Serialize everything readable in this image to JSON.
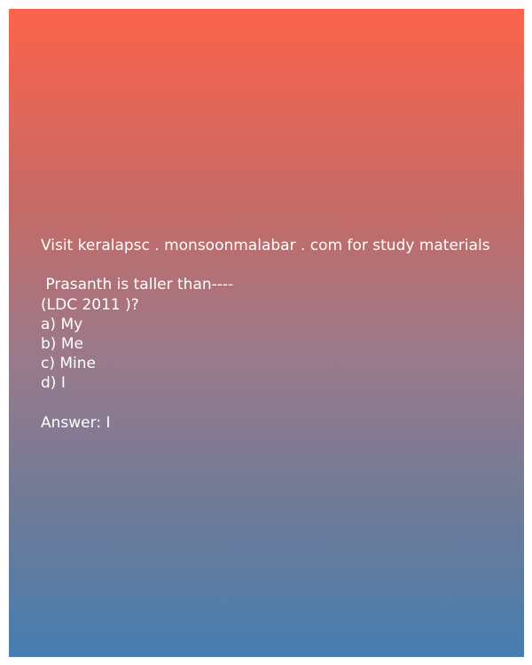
{
  "banner": "Visit keralapsc . monsoonmalabar . com for study materials",
  "question": {
    "text": " Prasanth is taller than----",
    "source": "(LDC 2011 )?"
  },
  "options": [
    "a) My",
    "b) Me",
    "c) Mine",
    "d) I"
  ],
  "answer": "Answer: I"
}
